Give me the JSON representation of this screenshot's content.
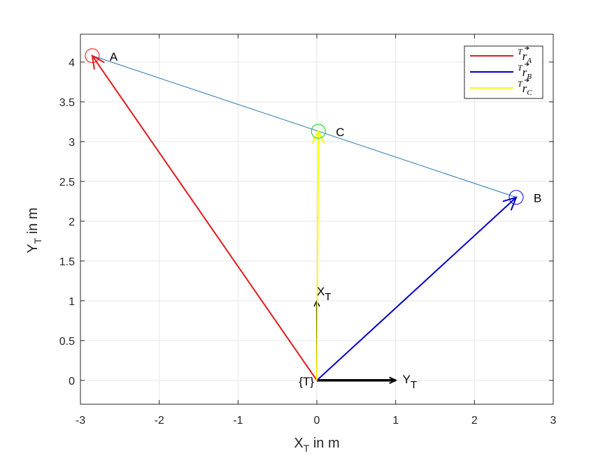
{
  "chart_data": {
    "type": "line",
    "xlabel": {
      "main": "X",
      "sub": "T",
      "rest": " in m"
    },
    "ylabel": {
      "main": "Y",
      "sub": "T",
      "rest": " in m"
    },
    "xlim": [
      -3,
      3
    ],
    "ylim": [
      -0.3,
      4.35
    ],
    "xticks": [
      -3,
      -2,
      -1,
      0,
      1,
      2,
      3
    ],
    "yticks": [
      0,
      0.5,
      1,
      1.5,
      2,
      2.5,
      3,
      3.5,
      4
    ],
    "grid": true,
    "legend_position": "top-right",
    "points": [
      {
        "label": "A",
        "x": -2.85,
        "y": 4.08,
        "color": "#ff0000"
      },
      {
        "label": "B",
        "x": 2.53,
        "y": 2.3,
        "color": "#0000ff"
      },
      {
        "label": "C",
        "x": 0.02,
        "y": 3.13,
        "color": "#00dd00"
      }
    ],
    "series": [
      {
        "name": "T r A",
        "x": [
          0,
          -2.85
        ],
        "y": [
          0,
          4.08
        ],
        "color": "#e31a1c"
      },
      {
        "name": "T r B",
        "x": [
          0,
          2.53
        ],
        "y": [
          0,
          2.3
        ],
        "color": "#0000cc"
      },
      {
        "name": "T r C",
        "x": [
          0,
          0.02
        ],
        "y": [
          0,
          3.13
        ],
        "color": "#ffff00"
      }
    ],
    "line_A_B": {
      "x": [
        -2.85,
        2.53
      ],
      "y": [
        4.08,
        2.3
      ],
      "color": "#1f77b4"
    },
    "frame": {
      "origin_label": "{T}",
      "x_axis": {
        "label": "X",
        "sub": "T",
        "to": [
          0,
          1
        ]
      },
      "y_axis": {
        "label": "Y",
        "sub": "T",
        "to": [
          1,
          0
        ]
      }
    },
    "legend": [
      {
        "sup": "T",
        "base": "r",
        "sub": "A",
        "color": "#e31a1c"
      },
      {
        "sup": "T",
        "base": "r",
        "sub": "B",
        "color": "#0000cc"
      },
      {
        "sup": "T",
        "base": "r",
        "sub": "C",
        "color": "#ffff00"
      }
    ]
  }
}
